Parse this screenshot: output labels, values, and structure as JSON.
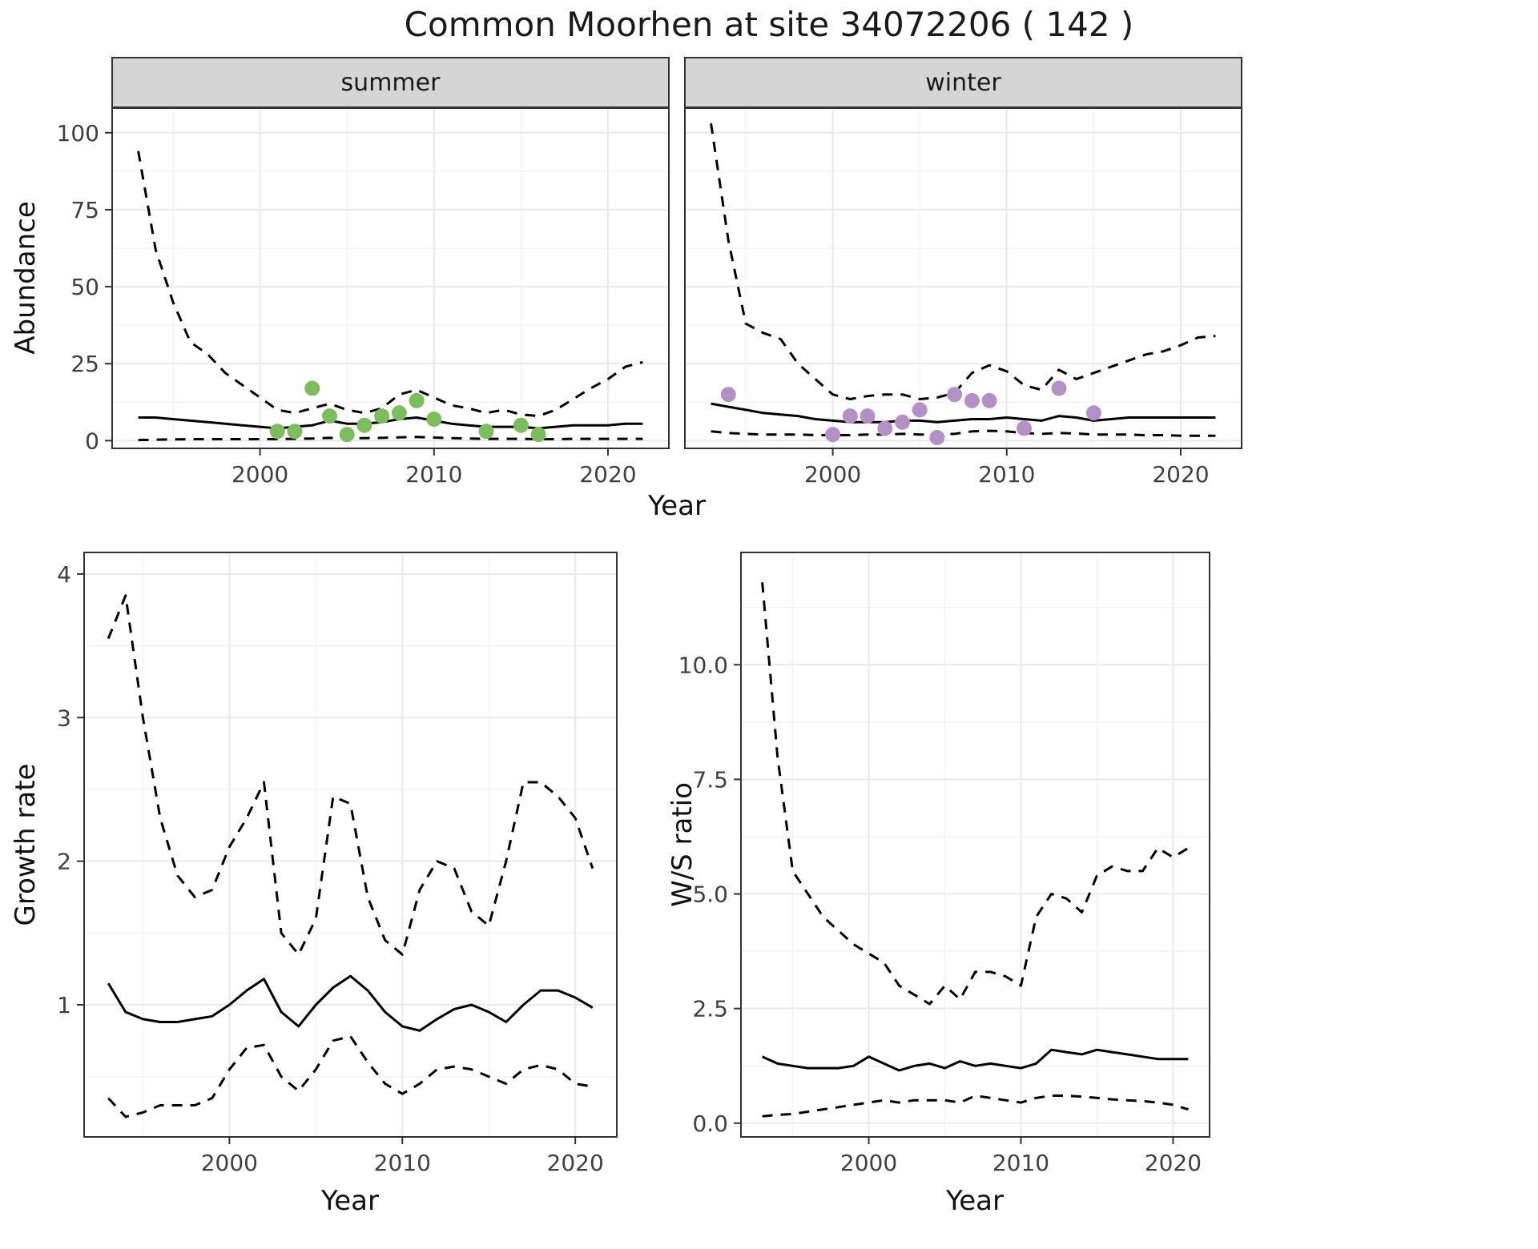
{
  "title": "Common Moorhen at site 34072206 ( 142 )",
  "facets": {
    "summer_label": "summer",
    "winter_label": "winter"
  },
  "axis_titles": {
    "abundance": "Abundance",
    "year_top": "Year",
    "growth": "Growth rate",
    "ws": "W/S ratio",
    "year_growth": "Year",
    "year_ws": "Year"
  },
  "colors": {
    "line": "#000000",
    "summer_points": "#7dbe5c",
    "winter_points": "#b292c6",
    "grid_major": "#e9e9e9",
    "grid_minor": "#f4f4f4",
    "panel_border": "#333333",
    "strip_bg": "#d5d5d5",
    "tick_text": "#404040"
  },
  "chart_data": [
    {
      "id": "summer",
      "type": "line",
      "title": "summer",
      "xlabel": "Year",
      "ylabel": "Abundance",
      "xlim": [
        1991.5,
        2023.5
      ],
      "ylim": [
        -2.5,
        108
      ],
      "xticks": [
        2000,
        2010,
        2020
      ],
      "xtick_labels": [
        "2000",
        "2010",
        "2020"
      ],
      "yticks": [
        0,
        25,
        50,
        75,
        100
      ],
      "ytick_labels": [
        "0",
        "25",
        "50",
        "75",
        "100"
      ],
      "xminor": [
        1995,
        2005,
        2015
      ],
      "yminor": [
        12.5,
        37.5,
        62.5,
        87.5
      ],
      "x": [
        1993,
        1994,
        1995,
        1996,
        1997,
        1998,
        1999,
        2000,
        2001,
        2002,
        2003,
        2004,
        2005,
        2006,
        2007,
        2008,
        2009,
        2010,
        2011,
        2012,
        2013,
        2014,
        2015,
        2016,
        2017,
        2018,
        2019,
        2020,
        2021,
        2022
      ],
      "series": [
        {
          "name": "upper-ci",
          "style": "dashed",
          "values": [
            94,
            62,
            45,
            32,
            28,
            22,
            18,
            14,
            10,
            9,
            10.5,
            12,
            10,
            9,
            10.5,
            15,
            16.5,
            14,
            11.5,
            10.5,
            9,
            10,
            8.5,
            8,
            10,
            13.5,
            17,
            20,
            24,
            25.5
          ]
        },
        {
          "name": "estimate",
          "style": "solid",
          "values": [
            7.5,
            7.5,
            7,
            6.5,
            6,
            5.5,
            5,
            4.5,
            4,
            4.5,
            5,
            6.5,
            5.5,
            5.5,
            6,
            7,
            7.5,
            6.5,
            5.5,
            5,
            4.5,
            4.5,
            4.5,
            4,
            4.5,
            5,
            5,
            5,
            5.5,
            5.5
          ]
        },
        {
          "name": "lower-ci",
          "style": "dashed",
          "values": [
            0.2,
            0.3,
            0.4,
            0.5,
            0.5,
            0.5,
            0.5,
            0.5,
            0.5,
            0.6,
            0.7,
            0.9,
            0.8,
            0.8,
            0.9,
            1.1,
            1.2,
            1.0,
            0.8,
            0.7,
            0.6,
            0.6,
            0.6,
            0.5,
            0.5,
            0.6,
            0.6,
            0.6,
            0.6,
            0.6
          ]
        }
      ],
      "points": {
        "name": "observed-counts",
        "color_key": "summer_points",
        "x": [
          2001,
          2002,
          2003,
          2004,
          2005,
          2006,
          2007,
          2008,
          2009,
          2010,
          2013,
          2015,
          2016
        ],
        "y": [
          3,
          3,
          17,
          8,
          2,
          5,
          8,
          9,
          13,
          7,
          3,
          5,
          2
        ]
      }
    },
    {
      "id": "winter",
      "type": "line",
      "title": "winter",
      "xlabel": "Year",
      "ylabel": "Abundance",
      "xlim": [
        1991.5,
        2023.5
      ],
      "ylim": [
        -2.5,
        108
      ],
      "xticks": [
        2000,
        2010,
        2020
      ],
      "xtick_labels": [
        "2000",
        "2010",
        "2020"
      ],
      "yticks": [
        0,
        25,
        50,
        75,
        100
      ],
      "ytick_labels": null,
      "xminor": [
        1995,
        2005,
        2015
      ],
      "yminor": [
        12.5,
        37.5,
        62.5,
        87.5
      ],
      "x": [
        1993,
        1994,
        1995,
        1996,
        1997,
        1998,
        1999,
        2000,
        2001,
        2002,
        2003,
        2004,
        2005,
        2006,
        2007,
        2008,
        2009,
        2010,
        2011,
        2012,
        2013,
        2014,
        2015,
        2016,
        2017,
        2018,
        2019,
        2020,
        2021,
        2022
      ],
      "series": [
        {
          "name": "upper-ci",
          "style": "dashed",
          "values": [
            103,
            65,
            38,
            35,
            33,
            25,
            20,
            15,
            13.5,
            14.5,
            15,
            15,
            13.5,
            14,
            15.5,
            22,
            24.5,
            22.5,
            18,
            16.5,
            23,
            20,
            22,
            24,
            26,
            28,
            29,
            31,
            33.5,
            34
          ]
        },
        {
          "name": "estimate",
          "style": "solid",
          "values": [
            12,
            11,
            10,
            9,
            8.5,
            8,
            7,
            6.5,
            6,
            6,
            6,
            6.5,
            6.5,
            6,
            6.5,
            7,
            7,
            7.5,
            7,
            6.5,
            8,
            7.5,
            6.5,
            7,
            7.5,
            7.5,
            7.5,
            7.5,
            7.5,
            7.5
          ]
        },
        {
          "name": "lower-ci",
          "style": "dashed",
          "values": [
            3,
            2.5,
            2.2,
            2,
            2,
            2,
            1.8,
            1.8,
            1.8,
            2,
            2,
            2.2,
            2,
            2,
            2.2,
            3,
            3.2,
            3,
            2.5,
            2.2,
            2.5,
            2.3,
            2,
            2,
            2,
            1.8,
            1.8,
            1.6,
            1.6,
            1.6
          ]
        }
      ],
      "points": {
        "name": "observed-counts",
        "color_key": "winter_points",
        "x": [
          1994,
          2000,
          2001,
          2002,
          2003,
          2004,
          2005,
          2006,
          2007,
          2008,
          2009,
          2011,
          2013,
          2015
        ],
        "y": [
          15,
          2,
          8,
          8,
          4,
          6,
          10,
          1,
          15,
          13,
          13,
          4,
          17,
          9
        ]
      }
    },
    {
      "id": "growth",
      "type": "line",
      "title": "Growth rate",
      "xlabel": "Year",
      "ylabel": "Growth rate",
      "xlim": [
        1991.6,
        2022.4
      ],
      "ylim": [
        0.08,
        4.15
      ],
      "xticks": [
        2000,
        2010,
        2020
      ],
      "xtick_labels": [
        "2000",
        "2010",
        "2020"
      ],
      "yticks": [
        1,
        2,
        3,
        4
      ],
      "ytick_labels": [
        "1",
        "2",
        "3",
        "4"
      ],
      "xminor": [
        1995,
        2005,
        2015
      ],
      "yminor": [
        0.5,
        1.5,
        2.5,
        3.5
      ],
      "x": [
        1993,
        1994,
        1995,
        1996,
        1997,
        1998,
        1999,
        2000,
        2001,
        2002,
        2003,
        2004,
        2005,
        2006,
        2007,
        2008,
        2009,
        2010,
        2011,
        2012,
        2013,
        2014,
        2015,
        2016,
        2017,
        2018,
        2019,
        2020,
        2021
      ],
      "series": [
        {
          "name": "upper-ci",
          "style": "dashed",
          "values": [
            3.55,
            3.85,
            3.0,
            2.3,
            1.9,
            1.75,
            1.8,
            2.1,
            2.3,
            2.55,
            1.5,
            1.35,
            1.6,
            2.45,
            2.4,
            1.75,
            1.45,
            1.35,
            1.8,
            2.0,
            1.95,
            1.65,
            1.55,
            2.0,
            2.55,
            2.55,
            2.45,
            2.3,
            1.95
          ]
        },
        {
          "name": "estimate",
          "style": "solid",
          "values": [
            1.15,
            0.95,
            0.9,
            0.88,
            0.88,
            0.9,
            0.92,
            1.0,
            1.1,
            1.18,
            0.95,
            0.85,
            1.0,
            1.12,
            1.2,
            1.1,
            0.95,
            0.85,
            0.82,
            0.9,
            0.97,
            1.0,
            0.95,
            0.88,
            1.0,
            1.1,
            1.1,
            1.05,
            0.98
          ]
        },
        {
          "name": "lower-ci",
          "style": "dashed",
          "values": [
            0.35,
            0.22,
            0.25,
            0.3,
            0.3,
            0.3,
            0.35,
            0.55,
            0.7,
            0.72,
            0.5,
            0.4,
            0.55,
            0.75,
            0.78,
            0.6,
            0.45,
            0.38,
            0.45,
            0.55,
            0.57,
            0.55,
            0.5,
            0.45,
            0.55,
            0.58,
            0.55,
            0.45,
            0.43
          ]
        }
      ],
      "points": null
    },
    {
      "id": "ws",
      "type": "line",
      "title": "W/S ratio",
      "xlabel": "Year",
      "ylabel": "W/S ratio",
      "xlim": [
        1991.6,
        2022.4
      ],
      "ylim": [
        -0.3,
        12.45
      ],
      "xticks": [
        2000,
        2010,
        2020
      ],
      "xtick_labels": [
        "2000",
        "2010",
        "2020"
      ],
      "yticks": [
        0,
        2.5,
        5,
        7.5,
        10
      ],
      "ytick_labels": [
        "0.0",
        "2.5",
        "5.0",
        "7.5",
        "10.0"
      ],
      "xminor": [
        1995,
        2005,
        2015
      ],
      "yminor": [
        1.25,
        3.75,
        6.25,
        8.75,
        11.25
      ],
      "x": [
        1993,
        1994,
        1995,
        1996,
        1997,
        1998,
        1999,
        2000,
        2001,
        2002,
        2003,
        2004,
        2005,
        2006,
        2007,
        2008,
        2009,
        2010,
        2011,
        2012,
        2013,
        2014,
        2015,
        2016,
        2017,
        2018,
        2019,
        2020,
        2021
      ],
      "series": [
        {
          "name": "upper-ci",
          "style": "dashed",
          "values": [
            11.8,
            8.0,
            5.5,
            5.0,
            4.5,
            4.2,
            3.9,
            3.7,
            3.5,
            3.0,
            2.8,
            2.6,
            3.0,
            2.7,
            3.3,
            3.3,
            3.2,
            3.0,
            4.5,
            5.0,
            4.9,
            4.6,
            5.4,
            5.6,
            5.5,
            5.5,
            6.0,
            5.8,
            6.0
          ]
        },
        {
          "name": "estimate",
          "style": "solid",
          "values": [
            1.45,
            1.3,
            1.25,
            1.2,
            1.2,
            1.2,
            1.25,
            1.45,
            1.3,
            1.15,
            1.25,
            1.3,
            1.2,
            1.35,
            1.25,
            1.3,
            1.25,
            1.2,
            1.3,
            1.6,
            1.55,
            1.5,
            1.6,
            1.55,
            1.5,
            1.45,
            1.4,
            1.4,
            1.4
          ]
        },
        {
          "name": "lower-ci",
          "style": "dashed",
          "values": [
            0.15,
            0.18,
            0.2,
            0.25,
            0.3,
            0.35,
            0.4,
            0.45,
            0.5,
            0.45,
            0.5,
            0.5,
            0.5,
            0.45,
            0.6,
            0.55,
            0.5,
            0.45,
            0.55,
            0.6,
            0.6,
            0.58,
            0.55,
            0.52,
            0.5,
            0.48,
            0.45,
            0.4,
            0.3
          ]
        }
      ],
      "points": null
    }
  ]
}
